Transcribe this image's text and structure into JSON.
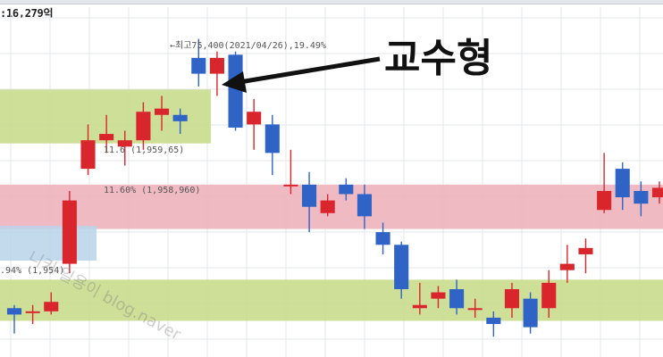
{
  "header": {
    "volume_readout": ":16,279억"
  },
  "callout": {
    "text": "교수형",
    "color": "#111111"
  },
  "colors": {
    "up_candle": "#d9262c",
    "down_candle": "#2f63c5",
    "green_zone": "#c9dc8d",
    "red_zone": "#eeb3bb",
    "blue_zone": "#b9d3ea",
    "grid": "#e2e6ea"
  },
  "chart_data": {
    "type": "candlestick",
    "title": "",
    "xlabel": "",
    "ylabel": "",
    "ylim": [
      0,
      100
    ],
    "grid": true,
    "price_scale_note": "relative scale (no printed price axis)",
    "annotations": {
      "peak": "←최고75,400(2021/04/26),19.49%",
      "level_1": "11.6 (1,959,65)",
      "level_2": "11.60% (1,958,960)",
      "level_3": ".94% (1,954)"
    },
    "zones": [
      {
        "name": "green-zone-upper",
        "color": "green",
        "y_from": 66,
        "y_to": 83
      },
      {
        "name": "red-zone",
        "color": "red",
        "y_from": 39,
        "y_to": 53
      },
      {
        "name": "blue-zone",
        "color": "blue",
        "y_from": 29,
        "y_to": 40
      },
      {
        "name": "green-zone-lower",
        "color": "green",
        "y_from": 10,
        "y_to": 23
      }
    ],
    "candles": [
      {
        "o": 14,
        "c": 12,
        "h": 15,
        "l": 6
      },
      {
        "o": 13,
        "c": 13,
        "h": 15,
        "l": 9
      },
      {
        "o": 13,
        "c": 16,
        "h": 19,
        "l": 12
      },
      {
        "o": 28,
        "c": 48,
        "h": 51,
        "l": 25
      },
      {
        "o": 58,
        "c": 67,
        "h": 72,
        "l": 56
      },
      {
        "o": 67,
        "c": 69,
        "h": 75,
        "l": 63
      },
      {
        "o": 65,
        "c": 67,
        "h": 70,
        "l": 59
      },
      {
        "o": 67,
        "c": 76,
        "h": 79,
        "l": 64
      },
      {
        "o": 75,
        "c": 77,
        "h": 81,
        "l": 70
      },
      {
        "o": 75,
        "c": 73,
        "h": 77,
        "l": 69
      },
      {
        "o": 93,
        "c": 88,
        "h": 99,
        "l": 84
      },
      {
        "o": 88,
        "c": 93,
        "h": 95,
        "l": 81
      },
      {
        "o": 94,
        "c": 71,
        "h": 95,
        "l": 70
      },
      {
        "o": 72,
        "c": 76,
        "h": 80,
        "l": 64
      },
      {
        "o": 72,
        "c": 63,
        "h": 75,
        "l": 56
      },
      {
        "o": 53,
        "c": 53,
        "h": 64,
        "l": 50
      },
      {
        "o": 53,
        "c": 46,
        "h": 57,
        "l": 38
      },
      {
        "o": 44,
        "c": 48,
        "h": 50,
        "l": 43
      },
      {
        "o": 53,
        "c": 50,
        "h": 55,
        "l": 48
      },
      {
        "o": 50,
        "c": 43,
        "h": 53,
        "l": 39
      },
      {
        "o": 38,
        "c": 34,
        "h": 41,
        "l": 31
      },
      {
        "o": 34,
        "c": 20,
        "h": 35,
        "l": 17
      },
      {
        "o": 14,
        "c": 15,
        "h": 22,
        "l": 12
      },
      {
        "o": 17,
        "c": 19,
        "h": 21,
        "l": 14
      },
      {
        "o": 20,
        "c": 14,
        "h": 23,
        "l": 12
      },
      {
        "o": 14,
        "c": 14,
        "h": 17,
        "l": 11
      },
      {
        "o": 11,
        "c": 9,
        "h": 13,
        "l": 5
      },
      {
        "o": 14,
        "c": 20,
        "h": 22,
        "l": 11
      },
      {
        "o": 17,
        "c": 8,
        "h": 19,
        "l": 6
      },
      {
        "o": 14,
        "c": 22,
        "h": 26,
        "l": 11
      },
      {
        "o": 26,
        "c": 28,
        "h": 34,
        "l": 22
      },
      {
        "o": 31,
        "c": 33,
        "h": 36,
        "l": 25
      },
      {
        "o": 45,
        "c": 51,
        "h": 63,
        "l": 44
      },
      {
        "o": 58,
        "c": 49,
        "h": 60,
        "l": 45
      },
      {
        "o": 51,
        "c": 47,
        "h": 54,
        "l": 43
      },
      {
        "o": 49,
        "c": 52,
        "h": 54,
        "l": 47
      }
    ]
  }
}
